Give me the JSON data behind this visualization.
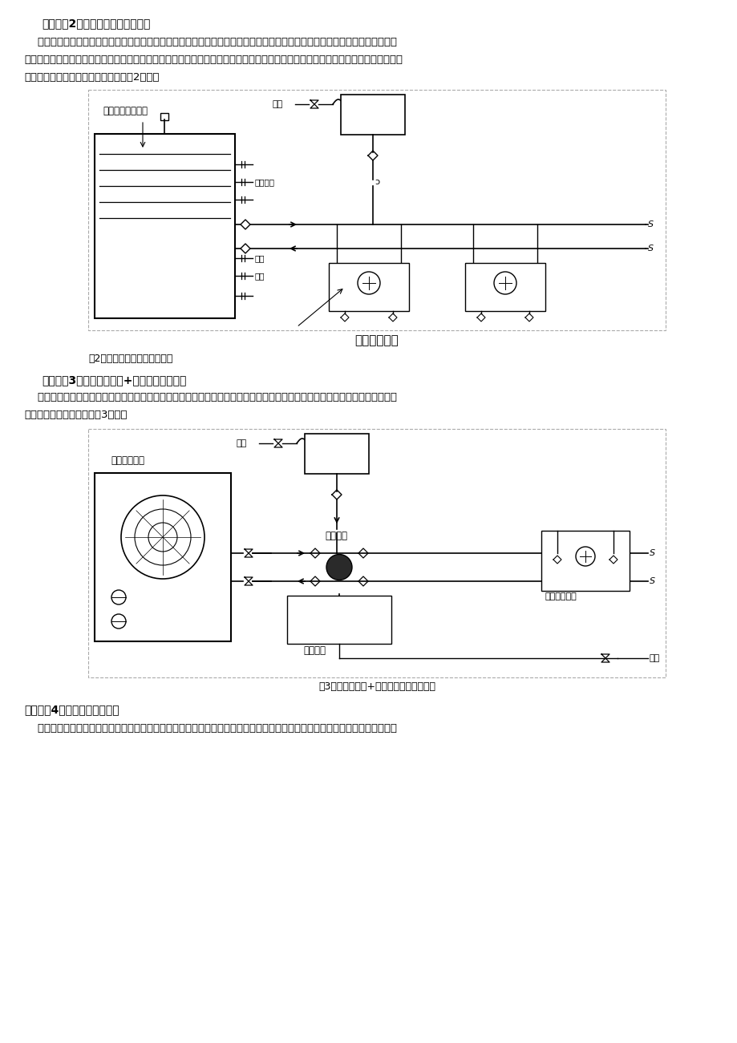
{
  "page_bg": "#ffffff",
  "title1": "解决方案2：户式燃气空调相关系统",
  "para1": "    户式燃气空调由室外机和室内机两大部分组成。室外机即该空调相关系统中的冷（热）源设备部分，它采用直燃型溴化锂吸收式",
  "para2": "制冷（热）循环原理，向住宅或建筑内提供空调冷水、供暖热水和卫生热水，通过管线相关系统与室内机（各种空调末端装置）相连，",
  "para3": "抵达需要的房间。该相关系统简图见图2所示。",
  "fig2_caption": "图2户式燃气空调相关系统简图",
  "title2": "解决方案3：风冷冷水机组+燃气锅炉相关系统",
  "para4": "    该相关系统中供冷相关系统主机为风冷冷水机组，供暖相关系统热源为燃气锅炉，供冷相关系统与供暖相关系统共用空调末端相",
  "para5": "关系统。相关系统简图见图3所示。",
  "fig3_caption": "图3风冷冷水机组+燃气锅炉相关系统简图",
  "title3": "解决方案4：水环热泵相关系统",
  "para6": "    水环热泵空调相关系统由许多并联的水源热泵机组的双管环路组成，其主要部件有：单元式水源热泵机组、冷却设备（通常用开",
  "text_color": "#000000",
  "line_color": "#000000"
}
